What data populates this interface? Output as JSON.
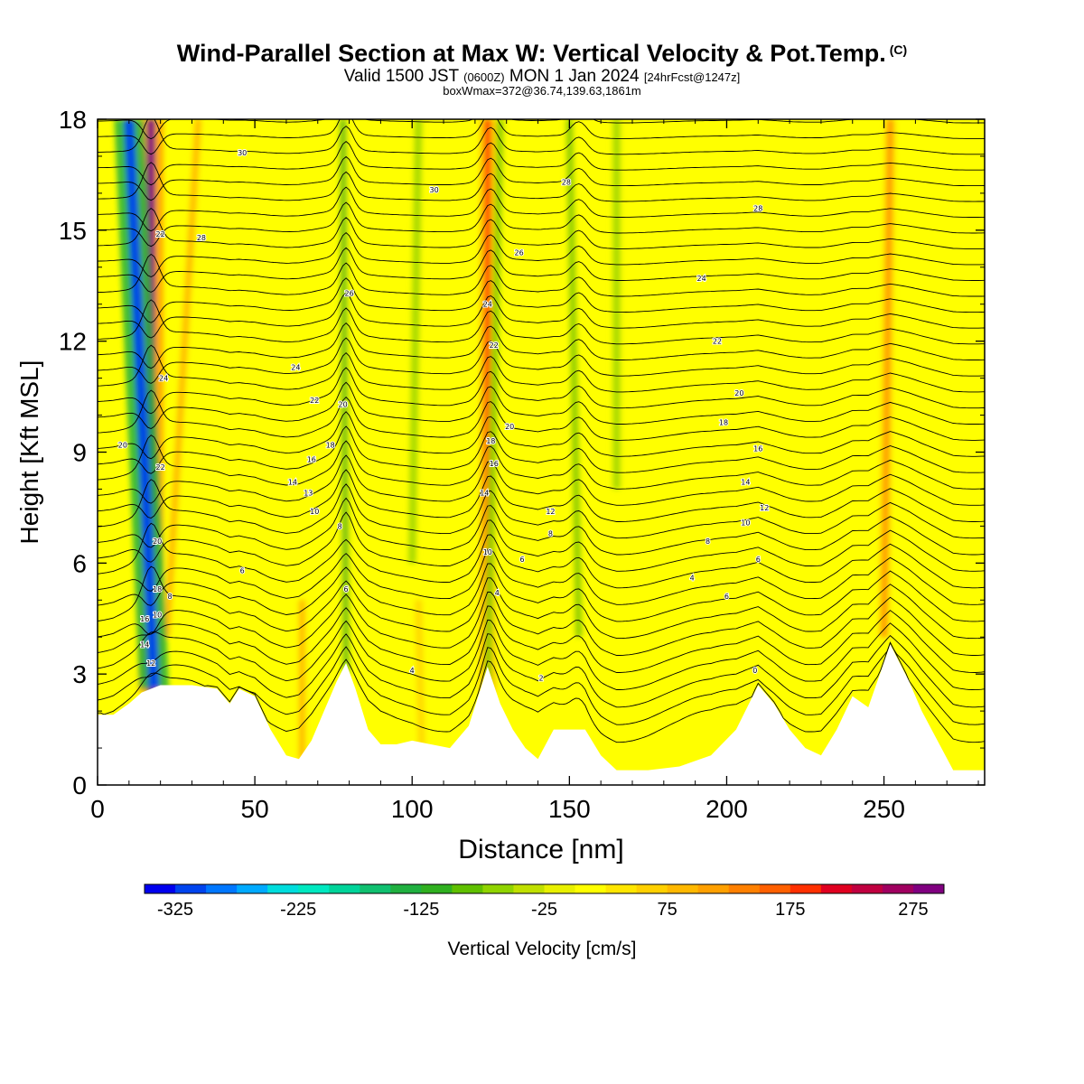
{
  "title": "Wind-Parallel Section at Max W: Vertical Velocity & Pot.Temp.",
  "title_unit": "(C)",
  "subtitle": {
    "part1": "Valid 1500 JST",
    "part2": "(0600Z)",
    "part3": "MON 1 Jan 2024",
    "part4": "[24hrFcst@1247z]"
  },
  "subtitle2": "boxWmax=372@36.74,139.63,1861m",
  "chart_data": {
    "type": "heatmap",
    "title": "Wind-Parallel Section at Max W: Vertical Velocity & Pot.Temp.",
    "xlabel": "Distance [nm]",
    "ylabel": "Height [Kft MSL]",
    "xlim": [
      0,
      282
    ],
    "ylim": [
      0,
      18
    ],
    "x_ticks": [
      0,
      50,
      100,
      150,
      200,
      250
    ],
    "y_ticks": [
      0,
      3,
      6,
      9,
      12,
      15,
      18
    ],
    "colorbar": {
      "label": "Vertical Velocity [cm/s]",
      "range": [
        -350,
        300
      ],
      "step": 25,
      "tick_values": [
        -325,
        -225,
        -125,
        -25,
        75,
        175,
        275
      ],
      "tick_labels": [
        "-325",
        "-225",
        "-125",
        "-25",
        "75",
        "175",
        "275"
      ],
      "colors": [
        "#0000ee",
        "#0044ee",
        "#0077ff",
        "#00aaff",
        "#00dddd",
        "#00e8c0",
        "#00d49a",
        "#10c070",
        "#20b040",
        "#30b020",
        "#60c000",
        "#90d400",
        "#c0e000",
        "#e8f000",
        "#ffff00",
        "#ffe600",
        "#ffd000",
        "#ffb800",
        "#ffa000",
        "#ff8000",
        "#ff6000",
        "#ff3000",
        "#e00020",
        "#c00040",
        "#a00060",
        "#800080"
      ]
    },
    "terrain": [
      [
        0,
        1.9
      ],
      [
        5,
        1.9
      ],
      [
        10,
        2.2
      ],
      [
        14,
        2.5
      ],
      [
        17,
        2.6
      ],
      [
        20,
        2.7
      ],
      [
        30,
        2.7
      ],
      [
        38,
        2.6
      ],
      [
        42,
        2.2
      ],
      [
        45,
        2.6
      ],
      [
        50,
        2.4
      ],
      [
        55,
        1.5
      ],
      [
        60,
        0.8
      ],
      [
        64,
        0.7
      ],
      [
        68,
        1.2
      ],
      [
        72,
        2.0
      ],
      [
        76,
        2.8
      ],
      [
        79,
        3.3
      ],
      [
        82,
        2.6
      ],
      [
        86,
        1.5
      ],
      [
        90,
        1.1
      ],
      [
        95,
        1.1
      ],
      [
        100,
        1.2
      ],
      [
        106,
        1.1
      ],
      [
        112,
        1.0
      ],
      [
        118,
        1.6
      ],
      [
        124,
        3.2
      ],
      [
        128,
        2.2
      ],
      [
        132,
        1.5
      ],
      [
        136,
        1.0
      ],
      [
        140,
        0.7
      ],
      [
        145,
        1.5
      ],
      [
        150,
        1.5
      ],
      [
        155,
        1.5
      ],
      [
        160,
        0.8
      ],
      [
        165,
        0.4
      ],
      [
        175,
        0.4
      ],
      [
        185,
        0.5
      ],
      [
        195,
        0.8
      ],
      [
        203,
        1.5
      ],
      [
        210,
        2.7
      ],
      [
        215,
        2.2
      ],
      [
        220,
        1.5
      ],
      [
        225,
        1.0
      ],
      [
        230,
        0.8
      ],
      [
        235,
        1.5
      ],
      [
        240,
        2.4
      ],
      [
        245,
        2.1
      ],
      [
        252,
        3.8
      ],
      [
        258,
        2.8
      ],
      [
        262,
        2.0
      ],
      [
        267,
        1.2
      ],
      [
        272,
        0.4
      ],
      [
        282,
        0.4
      ]
    ],
    "updraft_bands": [
      {
        "x0": 17,
        "x1": 17,
        "y0": 2.5,
        "y1": 18,
        "w": 275
      },
      {
        "x0": 22,
        "x1": 32,
        "y0": 4,
        "y1": 18,
        "w": 110
      },
      {
        "x0": 124,
        "x1": 124,
        "y0": 2.5,
        "y1": 18,
        "w": 175
      },
      {
        "x0": 65,
        "x1": 65,
        "y0": 0.7,
        "y1": 5,
        "w": 110
      },
      {
        "x0": 250,
        "x1": 252,
        "y0": 4,
        "y1": 18,
        "w": 125
      },
      {
        "x0": 103,
        "x1": 102,
        "y0": 1.0,
        "y1": 5,
        "w": 70
      }
    ],
    "downdraft_bands": [
      {
        "x0": 18,
        "x1": 10,
        "y0": 2.6,
        "y1": 18,
        "w": -325
      },
      {
        "x0": 79,
        "x1": 78,
        "y0": 3,
        "y1": 18,
        "w": -110
      },
      {
        "x0": 124,
        "x1": 128,
        "y0": 2.6,
        "y1": 18,
        "w": -100
      },
      {
        "x0": 153,
        "x1": 150,
        "y0": 4,
        "y1": 18,
        "w": -100
      },
      {
        "x0": 100,
        "x1": 102,
        "y0": 6,
        "y1": 18,
        "w": -75
      },
      {
        "x0": 165,
        "x1": 165,
        "y0": 8,
        "y1": 18,
        "w": -75
      }
    ],
    "theta_labels": [
      {
        "x": 46,
        "y": 5.8,
        "text": "6"
      },
      {
        "x": 23,
        "y": 5.1,
        "text": "8"
      },
      {
        "x": 19,
        "y": 4.6,
        "text": "10"
      },
      {
        "x": 17,
        "y": 3.3,
        "text": "12"
      },
      {
        "x": 15,
        "y": 3.8,
        "text": "14"
      },
      {
        "x": 15,
        "y": 4.5,
        "text": "16"
      },
      {
        "x": 19,
        "y": 5.3,
        "text": "18"
      },
      {
        "x": 19,
        "y": 6.6,
        "text": "20"
      },
      {
        "x": 20,
        "y": 8.6,
        "text": "22"
      },
      {
        "x": 21,
        "y": 11.0,
        "text": "24"
      },
      {
        "x": 8,
        "y": 9.2,
        "text": "20"
      },
      {
        "x": 20,
        "y": 14.9,
        "text": "22"
      },
      {
        "x": 33,
        "y": 14.8,
        "text": "28"
      },
      {
        "x": 46,
        "y": 17.1,
        "text": "30"
      },
      {
        "x": 62,
        "y": 8.2,
        "text": "14"
      },
      {
        "x": 67,
        "y": 7.9,
        "text": "13"
      },
      {
        "x": 69,
        "y": 7.4,
        "text": "10"
      },
      {
        "x": 68,
        "y": 8.8,
        "text": "16"
      },
      {
        "x": 74,
        "y": 9.2,
        "text": "18"
      },
      {
        "x": 69,
        "y": 10.4,
        "text": "22"
      },
      {
        "x": 78,
        "y": 10.3,
        "text": "20"
      },
      {
        "x": 63,
        "y": 11.3,
        "text": "24"
      },
      {
        "x": 80,
        "y": 13.3,
        "text": "26"
      },
      {
        "x": 77,
        "y": 7.0,
        "text": "8"
      },
      {
        "x": 79,
        "y": 5.3,
        "text": "6"
      },
      {
        "x": 107,
        "y": 16.1,
        "text": "30"
      },
      {
        "x": 100,
        "y": 3.1,
        "text": "4"
      },
      {
        "x": 123,
        "y": 7.9,
        "text": "14"
      },
      {
        "x": 124,
        "y": 6.3,
        "text": "10"
      },
      {
        "x": 126,
        "y": 8.7,
        "text": "16"
      },
      {
        "x": 125,
        "y": 9.3,
        "text": "18"
      },
      {
        "x": 126,
        "y": 11.9,
        "text": "22"
      },
      {
        "x": 131,
        "y": 9.7,
        "text": "20"
      },
      {
        "x": 124,
        "y": 13.0,
        "text": "24"
      },
      {
        "x": 134,
        "y": 14.4,
        "text": "26"
      },
      {
        "x": 127,
        "y": 5.2,
        "text": "4"
      },
      {
        "x": 135,
        "y": 6.1,
        "text": "6"
      },
      {
        "x": 144,
        "y": 7.4,
        "text": "12"
      },
      {
        "x": 144,
        "y": 6.8,
        "text": "8"
      },
      {
        "x": 141,
        "y": 2.9,
        "text": "2"
      },
      {
        "x": 149,
        "y": 16.3,
        "text": "28"
      },
      {
        "x": 192,
        "y": 13.7,
        "text": "24"
      },
      {
        "x": 197,
        "y": 12.0,
        "text": "22"
      },
      {
        "x": 204,
        "y": 10.6,
        "text": "20"
      },
      {
        "x": 199,
        "y": 9.8,
        "text": "18"
      },
      {
        "x": 210,
        "y": 9.1,
        "text": "16"
      },
      {
        "x": 206,
        "y": 8.2,
        "text": "14"
      },
      {
        "x": 212,
        "y": 7.5,
        "text": "12"
      },
      {
        "x": 206,
        "y": 7.1,
        "text": "10"
      },
      {
        "x": 194,
        "y": 6.6,
        "text": "8"
      },
      {
        "x": 210,
        "y": 6.1,
        "text": "6"
      },
      {
        "x": 189,
        "y": 5.6,
        "text": "4"
      },
      {
        "x": 200,
        "y": 5.1,
        "text": "6"
      },
      {
        "x": 210,
        "y": 15.6,
        "text": "28"
      },
      {
        "x": 209,
        "y": 3.1,
        "text": "0"
      }
    ]
  }
}
